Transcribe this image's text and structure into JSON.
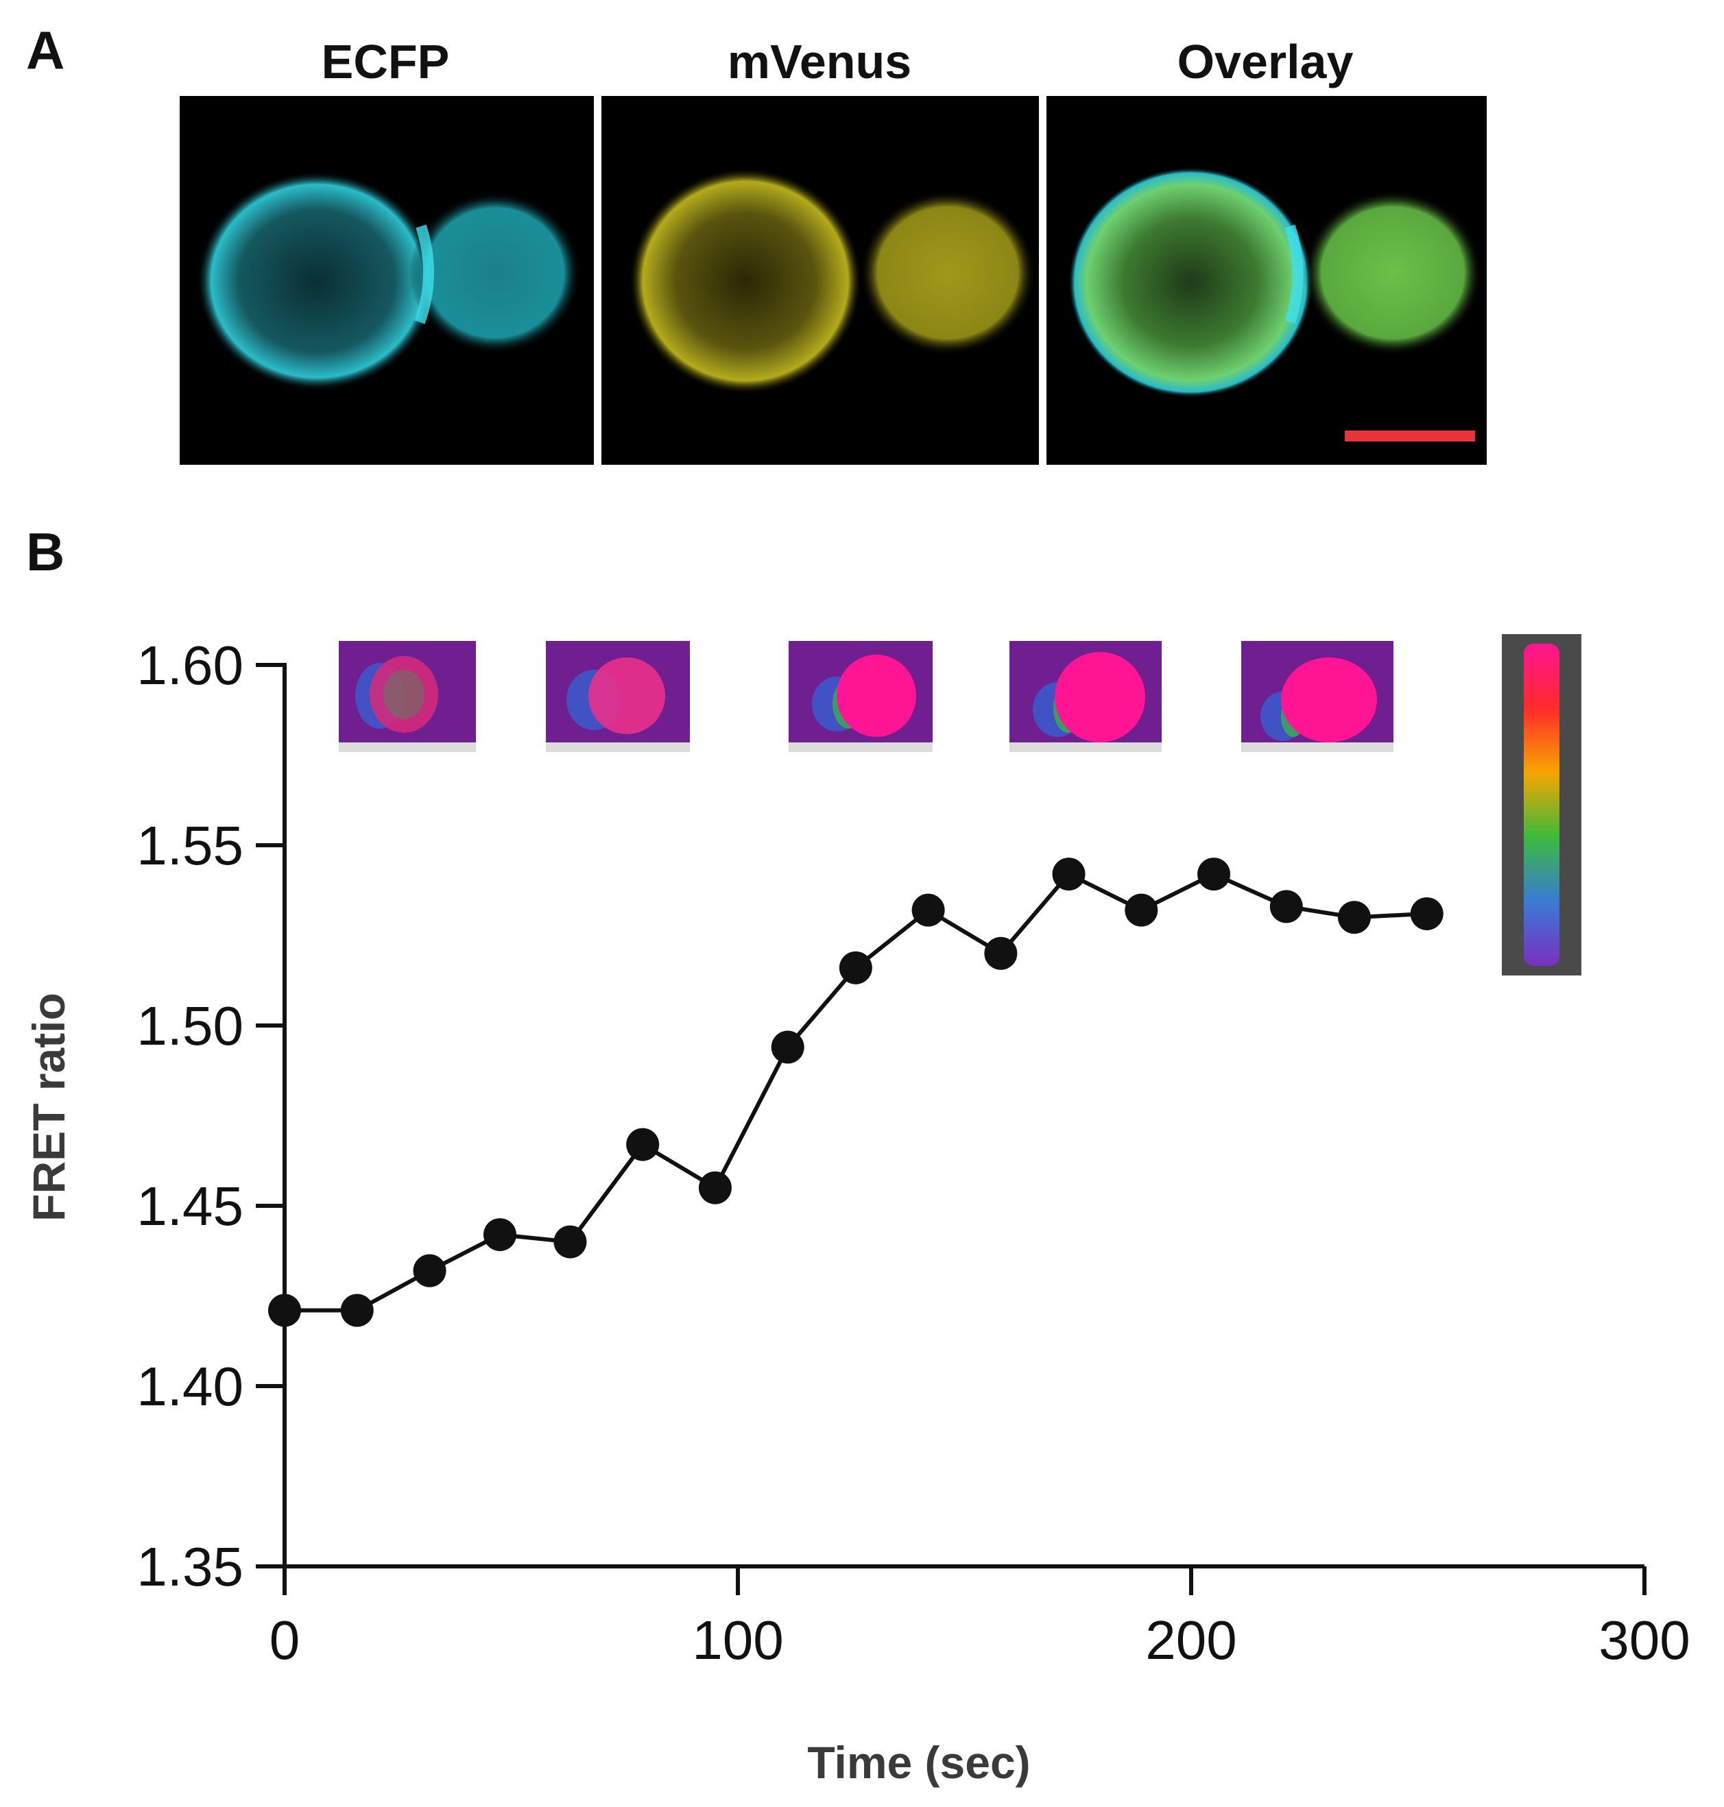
{
  "panel_a": {
    "letter": "A",
    "channels": [
      {
        "label": "ECFP",
        "color": "#2bbcc8"
      },
      {
        "label": "mVenus",
        "color": "#c8c020"
      },
      {
        "label": "Overlay",
        "color": "#6ed070"
      }
    ],
    "scale_bar_color": "#e8333a"
  },
  "panel_b": {
    "letter": "B",
    "colorbar_gradient": [
      "#ff1493",
      "#ff2a2a",
      "#f7a500",
      "#3cba3c",
      "#3a7bd5",
      "#7a2fc0"
    ]
  },
  "chart_data": {
    "type": "line",
    "xlabel": "Time (sec)",
    "ylabel": "FRET ratio",
    "xlim": [
      0,
      300
    ],
    "ylim": [
      1.35,
      1.6
    ],
    "xticks": [
      0,
      100,
      200,
      300
    ],
    "yticks": [
      1.35,
      1.4,
      1.45,
      1.5,
      1.55,
      1.6
    ],
    "xtick_labels": [
      "0",
      "100",
      "200",
      "300"
    ],
    "ytick_labels": [
      "1.35",
      "1.40",
      "1.45",
      "1.50",
      "1.55",
      "1.60"
    ],
    "series": [
      {
        "name": "FRET ratio",
        "color": "#111111",
        "x": [
          0,
          16,
          32,
          47.5,
          63,
          79,
          95,
          111,
          126,
          142,
          158,
          173,
          189,
          205,
          221,
          236,
          252
        ],
        "y": [
          1.421,
          1.421,
          1.432,
          1.442,
          1.44,
          1.467,
          1.455,
          1.494,
          1.516,
          1.532,
          1.52,
          1.542,
          1.532,
          1.542,
          1.533,
          1.53,
          1.531
        ]
      }
    ]
  }
}
